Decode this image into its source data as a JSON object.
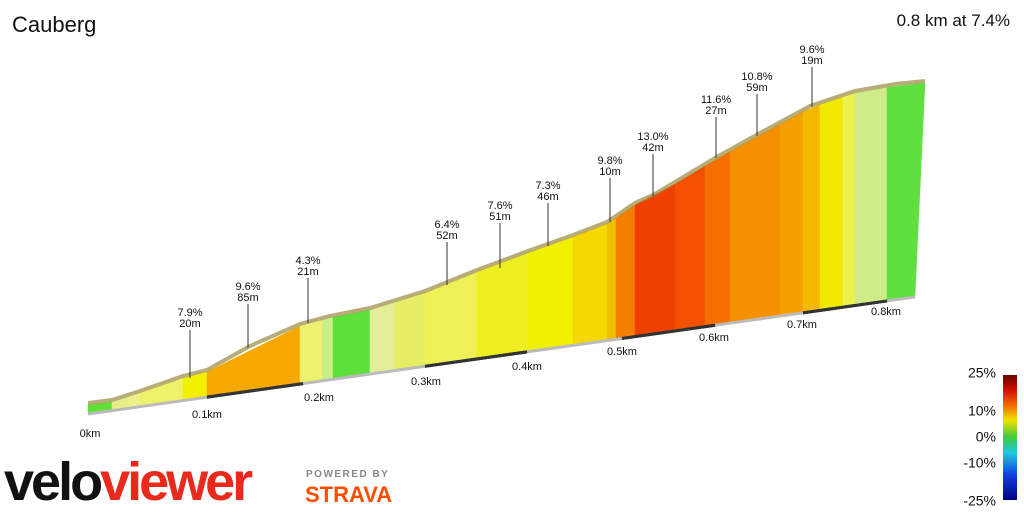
{
  "header": {
    "title": "Cauberg",
    "summary": "0.8 km at 7.4%"
  },
  "annotations": [
    {
      "grade": "7.9%",
      "length": "20m"
    },
    {
      "grade": "9.6%",
      "length": "85m"
    },
    {
      "grade": "4.3%",
      "length": "21m"
    },
    {
      "grade": "6.4%",
      "length": "52m"
    },
    {
      "grade": "7.6%",
      "length": "51m"
    },
    {
      "grade": "7.3%",
      "length": "46m"
    },
    {
      "grade": "9.8%",
      "length": "10m"
    },
    {
      "grade": "13.0%",
      "length": "42m"
    },
    {
      "grade": "11.6%",
      "length": "27m"
    },
    {
      "grade": "10.8%",
      "length": "59m"
    },
    {
      "grade": "9.6%",
      "length": "19m"
    }
  ],
  "distance_labels": [
    "0km",
    "0.1km",
    "0.2km",
    "0.3km",
    "0.4km",
    "0.5km",
    "0.6km",
    "0.7km",
    "0.8km"
  ],
  "gradient_legend": [
    "25%",
    "10%",
    "0%",
    "-10%",
    "-25%"
  ],
  "branding": {
    "logo_left": "velo",
    "logo_right": "viewer",
    "powered_by": "POWERED BY",
    "partner": "STRAVA"
  }
}
